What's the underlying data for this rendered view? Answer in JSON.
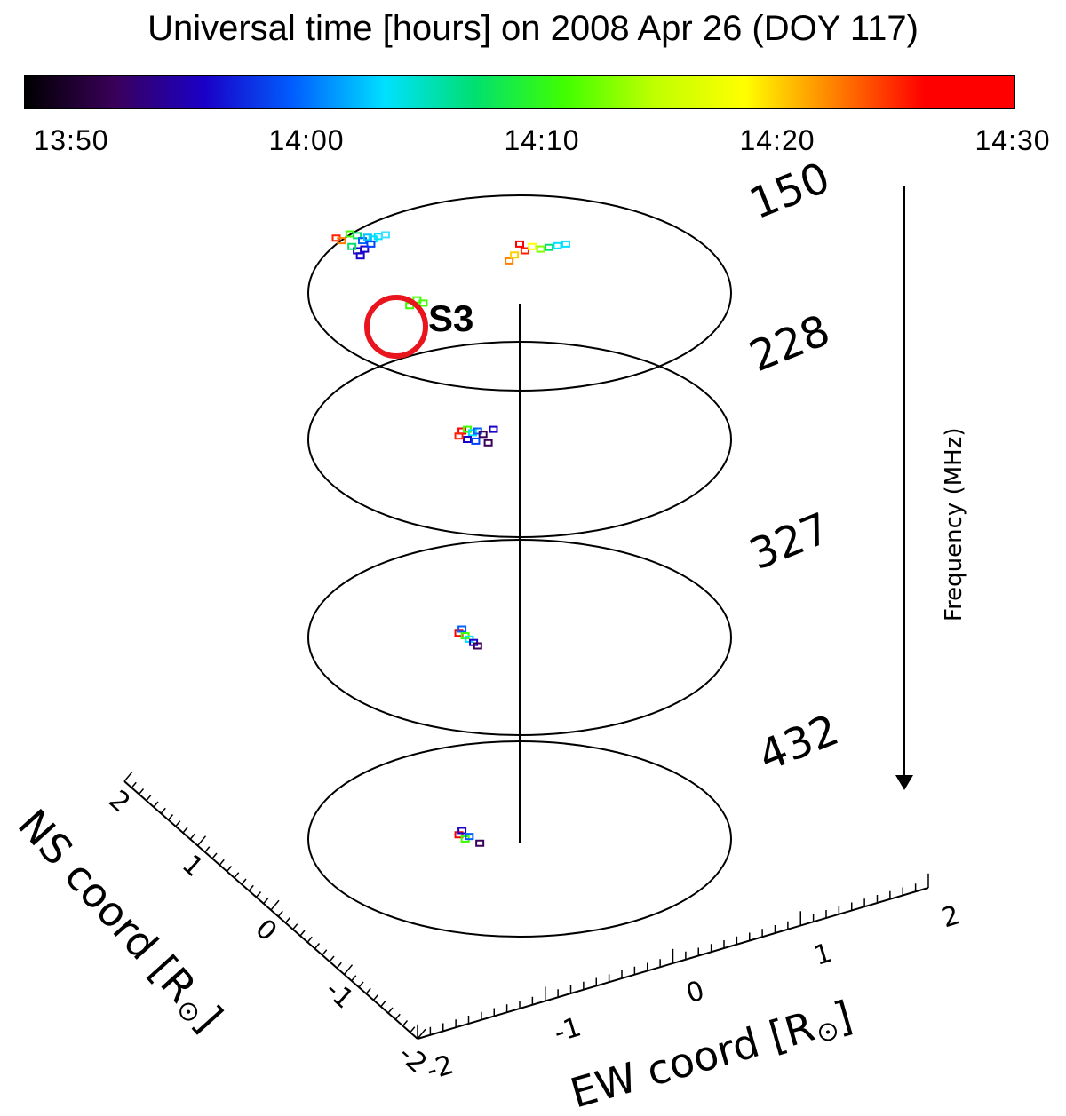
{
  "chart_data": {
    "type": "scatter",
    "title": "Universal time [hours] on 2008 Apr 26 (DOY 117)",
    "colorbar": {
      "ticks": [
        "13:50",
        "14:00",
        "14:10",
        "14:20",
        "14:30"
      ],
      "stops": [
        "#000000",
        "#3a005a",
        "#1a00c8",
        "#0060ff",
        "#00e0ff",
        "#00e070",
        "#40ff00",
        "#c0ff00",
        "#ffff00",
        "#ff8000",
        "#ff0000",
        "#ff0000"
      ]
    },
    "frequencies": [
      "150",
      "228",
      "327",
      "432"
    ],
    "frequency_axis_label": "Frequency (MHz)",
    "ns_axis": {
      "label": "NS coord [R",
      "ticks": [
        "2",
        "1",
        "0",
        "-1",
        "-2"
      ]
    },
    "ew_axis": {
      "label": "EW coord [R",
      "ticks": [
        "-2",
        "-1",
        "0",
        "1",
        "2"
      ]
    },
    "annotation": "S3",
    "series": [
      {
        "frequency": "150",
        "points": [
          {
            "x": -1.75,
            "y": 0.65,
            "c": "#ff2000"
          },
          {
            "x": -1.7,
            "y": 0.62,
            "c": "#ff8000"
          },
          {
            "x": -1.62,
            "y": 0.7,
            "c": "#40ff00"
          },
          {
            "x": -1.55,
            "y": 0.68,
            "c": "#00e070"
          },
          {
            "x": -1.5,
            "y": 0.62,
            "c": "#0060ff"
          },
          {
            "x": -1.45,
            "y": 0.66,
            "c": "#00c0ff"
          },
          {
            "x": -1.4,
            "y": 0.64,
            "c": "#00e0ff"
          },
          {
            "x": -1.35,
            "y": 0.67,
            "c": "#00e0ff"
          },
          {
            "x": -1.28,
            "y": 0.69,
            "c": "#40e0ff"
          },
          {
            "x": -1.55,
            "y": 0.5,
            "c": "#1a00c8"
          },
          {
            "x": -1.48,
            "y": 0.52,
            "c": "#1a00c8"
          },
          {
            "x": -1.6,
            "y": 0.55,
            "c": "#00e070"
          },
          {
            "x": -1.42,
            "y": 0.58,
            "c": "#0040ff"
          },
          {
            "x": -1.52,
            "y": 0.44,
            "c": "#1a00c8"
          },
          {
            "x": -0.1,
            "y": 0.38,
            "c": "#ff8000"
          },
          {
            "x": -0.05,
            "y": 0.45,
            "c": "#ffd000"
          },
          {
            "x": 0.05,
            "y": 0.5,
            "c": "#ff2000"
          },
          {
            "x": 0.12,
            "y": 0.55,
            "c": "#ffff00"
          },
          {
            "x": 0.2,
            "y": 0.52,
            "c": "#80ff00"
          },
          {
            "x": 0.28,
            "y": 0.54,
            "c": "#00e070"
          },
          {
            "x": 0.36,
            "y": 0.56,
            "c": "#00e0ff"
          },
          {
            "x": 0.44,
            "y": 0.58,
            "c": "#00e0ff"
          },
          {
            "x": 0.0,
            "y": 0.58,
            "c": "#ff0000"
          }
        ]
      },
      {
        "frequency": "228",
        "points": [
          {
            "x": -0.55,
            "y": 0.1,
            "c": "#ff0000"
          },
          {
            "x": -0.5,
            "y": 0.12,
            "c": "#40ff00"
          },
          {
            "x": -0.45,
            "y": 0.08,
            "c": "#00e0ff"
          },
          {
            "x": -0.4,
            "y": 0.1,
            "c": "#0060ff"
          },
          {
            "x": -0.35,
            "y": 0.06,
            "c": "#3a005a"
          },
          {
            "x": -0.25,
            "y": 0.12,
            "c": "#1a00c8"
          },
          {
            "x": -0.5,
            "y": 0.0,
            "c": "#1a00c8"
          },
          {
            "x": -0.42,
            "y": -0.02,
            "c": "#0040ff"
          },
          {
            "x": -0.3,
            "y": -0.04,
            "c": "#3a005a"
          },
          {
            "x": -0.58,
            "y": 0.04,
            "c": "#ff2000"
          }
        ]
      },
      {
        "frequency": "327",
        "points": [
          {
            "x": -0.58,
            "y": 0.05,
            "c": "#ff0000"
          },
          {
            "x": -0.55,
            "y": 0.1,
            "c": "#0060ff"
          },
          {
            "x": -0.52,
            "y": 0.02,
            "c": "#40ff00"
          },
          {
            "x": -0.48,
            "y": -0.02,
            "c": "#00e0ff"
          },
          {
            "x": -0.44,
            "y": -0.06,
            "c": "#1a00c8"
          },
          {
            "x": -0.4,
            "y": -0.1,
            "c": "#3a005a"
          }
        ]
      },
      {
        "frequency": "432",
        "points": [
          {
            "x": -0.58,
            "y": 0.05,
            "c": "#ff0000"
          },
          {
            "x": -0.55,
            "y": 0.1,
            "c": "#1a00c8"
          },
          {
            "x": -0.52,
            "y": 0.0,
            "c": "#40ff00"
          },
          {
            "x": -0.48,
            "y": 0.03,
            "c": "#0060ff"
          },
          {
            "x": -0.38,
            "y": -0.05,
            "c": "#3a005a"
          }
        ]
      }
    ],
    "s3_points": [
      {
        "x": -1.05,
        "y": -0.15,
        "c": "#40ff00"
      },
      {
        "x": -0.98,
        "y": -0.08,
        "c": "#40ff00"
      },
      {
        "x": -0.92,
        "y": -0.12,
        "c": "#40ff00"
      }
    ]
  }
}
